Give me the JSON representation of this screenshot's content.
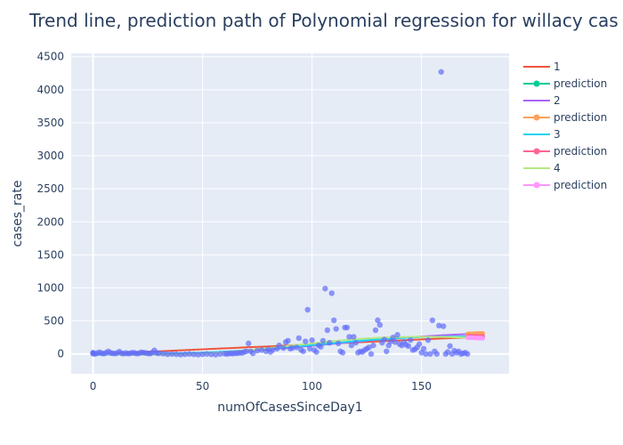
{
  "chart_data": {
    "type": "scatter",
    "title": "Trend line, prediction path of Polynomial regression for willacy cas",
    "xlabel": "numOfCasesSinceDay1",
    "ylabel": "cases_rate",
    "xlim": [
      -10,
      190
    ],
    "ylim": [
      -300,
      4550
    ],
    "xticks": [
      0,
      50,
      100,
      150
    ],
    "yticks": [
      0,
      500,
      1000,
      1500,
      2000,
      2500,
      3000,
      3500,
      4000,
      4500
    ],
    "grid": true,
    "legend_position": "right",
    "colors": {
      "plot_bg": "#e5ecf6",
      "grid": "#ffffff",
      "points": "#636efa"
    },
    "points": {
      "x": [
        0,
        0,
        0,
        1,
        2,
        3,
        4,
        5,
        6,
        7,
        8,
        9,
        10,
        11,
        12,
        13,
        14,
        15,
        16,
        17,
        18,
        19,
        20,
        21,
        22,
        23,
        24,
        25,
        26,
        27,
        28,
        29,
        30,
        32,
        34,
        36,
        38,
        40,
        42,
        44,
        46,
        48,
        50,
        52,
        54,
        56,
        58,
        60,
        61,
        62,
        63,
        64,
        65,
        66,
        67,
        68,
        69,
        70,
        71,
        72,
        73,
        75,
        77,
        79,
        80,
        81,
        82,
        84,
        85,
        87,
        88,
        89,
        90,
        91,
        93,
        94,
        95,
        96,
        97,
        98,
        99,
        100,
        101,
        102,
        103,
        104,
        105,
        106,
        107,
        108,
        109,
        110,
        111,
        112,
        113,
        114,
        115,
        116,
        117,
        118,
        119,
        120,
        121,
        122,
        123,
        124,
        125,
        126,
        127,
        128,
        129,
        130,
        131,
        132,
        133,
        134,
        135,
        136,
        137,
        138,
        139,
        140,
        141,
        142,
        143,
        144,
        145,
        146,
        147,
        148,
        149,
        150,
        151,
        152,
        153,
        154,
        155,
        156,
        157,
        158,
        159,
        160,
        161,
        162,
        163,
        164,
        165,
        166,
        167,
        168,
        169,
        170,
        171
      ],
      "y": [
        10,
        5,
        20,
        0,
        15,
        25,
        10,
        5,
        20,
        40,
        15,
        10,
        5,
        15,
        35,
        10,
        5,
        15,
        5,
        10,
        20,
        15,
        5,
        10,
        25,
        20,
        15,
        10,
        5,
        20,
        55,
        15,
        10,
        5,
        -5,
        0,
        -5,
        -10,
        -5,
        0,
        -5,
        -10,
        -5,
        0,
        -5,
        -10,
        0,
        5,
        0,
        5,
        10,
        5,
        15,
        10,
        20,
        15,
        30,
        40,
        160,
        40,
        10,
        50,
        60,
        40,
        70,
        30,
        60,
        80,
        130,
        90,
        180,
        200,
        80,
        90,
        100,
        240,
        60,
        40,
        190,
        670,
        80,
        210,
        60,
        30,
        130,
        110,
        200,
        990,
        360,
        170,
        920,
        510,
        380,
        160,
        40,
        20,
        400,
        400,
        260,
        130,
        260,
        170,
        20,
        40,
        30,
        60,
        80,
        100,
        0,
        130,
        360,
        510,
        440,
        170,
        220,
        40,
        130,
        190,
        250,
        180,
        290,
        150,
        130,
        180,
        140,
        120,
        210,
        60,
        70,
        100,
        150,
        20,
        80,
        0,
        210,
        0,
        510,
        40,
        0,
        430,
        4270,
        420,
        0,
        30,
        120,
        0,
        50,
        20,
        40,
        0,
        10,
        20,
        0
      ]
    },
    "series": [
      {
        "name": "1",
        "color": "#ef553b",
        "mode": "lines",
        "x": [
          0,
          10,
          20,
          30,
          40,
          50,
          60,
          70,
          80,
          90,
          100,
          110,
          120,
          130,
          140,
          150,
          160,
          170,
          178
        ],
        "y": [
          -10,
          10,
          25,
          40,
          55,
          70,
          85,
          100,
          115,
          130,
          145,
          160,
          175,
          190,
          205,
          220,
          235,
          250,
          262
        ]
      },
      {
        "name": "prediction",
        "color": "#00cc96",
        "mode": "lines+markers",
        "x": [
          171,
          172,
          173,
          174,
          175,
          176,
          177,
          178
        ],
        "y": [
          251,
          253,
          254,
          256,
          257,
          259,
          260,
          262
        ]
      },
      {
        "name": "2",
        "color": "#ab63fa",
        "mode": "lines",
        "x": [
          0,
          10,
          20,
          30,
          40,
          50,
          60,
          70,
          80,
          90,
          100,
          110,
          120,
          130,
          140,
          150,
          160,
          170,
          178
        ],
        "y": [
          10,
          0,
          -5,
          -5,
          0,
          10,
          25,
          45,
          70,
          95,
          125,
          155,
          185,
          215,
          240,
          265,
          285,
          300,
          310
        ]
      },
      {
        "name": "prediction",
        "color": "#ffa15a",
        "mode": "lines+markers",
        "x": [
          171,
          172,
          173,
          174,
          175,
          176,
          177,
          178
        ],
        "y": [
          302,
          304,
          305,
          307,
          308,
          309,
          310,
          312
        ]
      },
      {
        "name": "3",
        "color": "#19d3f3",
        "mode": "lines",
        "x": [
          0,
          10,
          20,
          30,
          40,
          50,
          60,
          70,
          80,
          90,
          100,
          110,
          120,
          130,
          140,
          150,
          160,
          170,
          178
        ],
        "y": [
          -15,
          -5,
          0,
          5,
          10,
          20,
          35,
          55,
          80,
          105,
          135,
          165,
          195,
          220,
          240,
          255,
          262,
          265,
          266
        ]
      },
      {
        "name": "prediction",
        "color": "#ff6692",
        "mode": "lines+markers",
        "x": [
          171,
          172,
          173,
          174,
          175,
          176,
          177,
          178
        ],
        "y": [
          265,
          265,
          266,
          266,
          266,
          266,
          266,
          266
        ]
      },
      {
        "name": "4",
        "color": "#b6e880",
        "mode": "lines",
        "x": [
          0,
          10,
          20,
          30,
          40,
          50,
          60,
          70,
          80,
          90,
          100,
          110,
          120,
          130,
          140,
          150,
          160,
          170,
          178
        ],
        "y": [
          5,
          -5,
          -10,
          -10,
          -5,
          5,
          25,
          55,
          90,
          125,
          160,
          195,
          225,
          245,
          255,
          260,
          258,
          250,
          240
        ]
      },
      {
        "name": "prediction",
        "color": "#ff97ff",
        "mode": "lines+markers",
        "x": [
          171,
          172,
          173,
          174,
          175,
          176,
          177,
          178
        ],
        "y": [
          249,
          247,
          246,
          244,
          243,
          241,
          240,
          238
        ]
      }
    ]
  }
}
